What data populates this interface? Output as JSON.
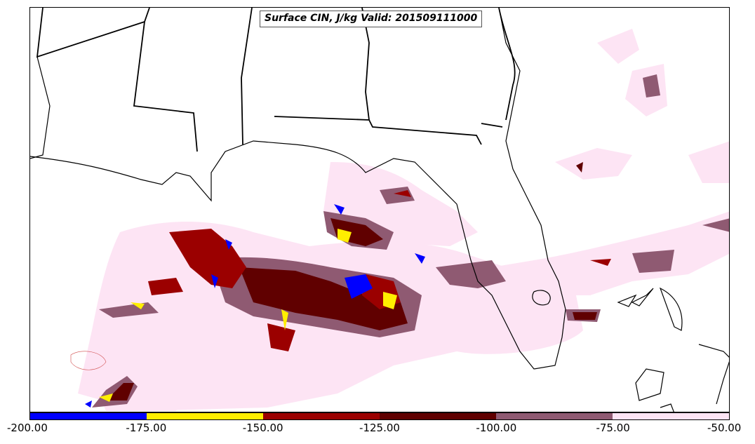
{
  "title": "Surface CIN, J/kg Valid: 201509111000",
  "colorbar": {
    "colors": [
      "#0000ff",
      "#ffee00",
      "#9b0000",
      "#600000",
      "#8f5a72",
      "#fde4f4"
    ],
    "ticks": [
      "-200.00",
      "-175.00",
      "-150.00",
      "-125.00",
      "-100.00",
      "-75.00",
      "-50.00"
    ]
  },
  "map_colors": {
    "land_border": "#000000",
    "coastline": "#000000",
    "pale_pink": "#fde4f4",
    "mauve": "#8f5a72",
    "dark_red": "#600000",
    "red": "#9b0000",
    "yellow": "#ffee00",
    "blue": "#0000ff"
  }
}
